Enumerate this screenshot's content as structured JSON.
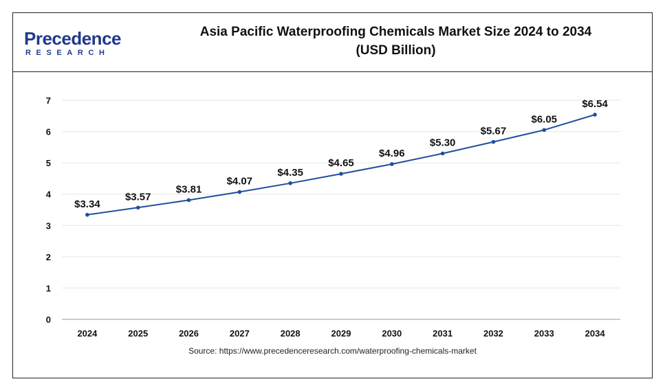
{
  "logo": {
    "main": "Precedence",
    "sub": "RESEARCH"
  },
  "title_line1": "Asia Pacific Waterproofing Chemicals Market Size 2024 to 2034",
  "title_line2": "(USD Billion)",
  "source": "Source: https://www.precedenceresearch.com/waterproofing-chemicals-market",
  "colors": {
    "line": "#1f4e9c",
    "marker": "#1f4e9c",
    "brand": "#1f3a8a"
  },
  "chart_data": {
    "type": "line",
    "title": "Asia Pacific Waterproofing Chemicals Market Size 2024 to 2034 (USD Billion)",
    "categories": [
      "2024",
      "2025",
      "2026",
      "2027",
      "2028",
      "2029",
      "2030",
      "2031",
      "2032",
      "2033",
      "2034"
    ],
    "series": [
      {
        "values": [
          3.34,
          3.57,
          3.81,
          4.07,
          4.35,
          4.65,
          4.96,
          5.3,
          5.67,
          6.05,
          6.54
        ]
      }
    ],
    "data_labels": [
      "$3.34",
      "$3.57",
      "$3.81",
      "$4.07",
      "$4.35",
      "$4.65",
      "$4.96",
      "$5.30",
      "$5.67",
      "$6.05",
      "$6.54"
    ],
    "ylim": [
      0,
      7
    ],
    "yticks": [
      "0",
      "1",
      "2",
      "3",
      "4",
      "5",
      "6",
      "7"
    ],
    "xlabel": "",
    "ylabel": "",
    "grid": true,
    "legend": "none"
  }
}
